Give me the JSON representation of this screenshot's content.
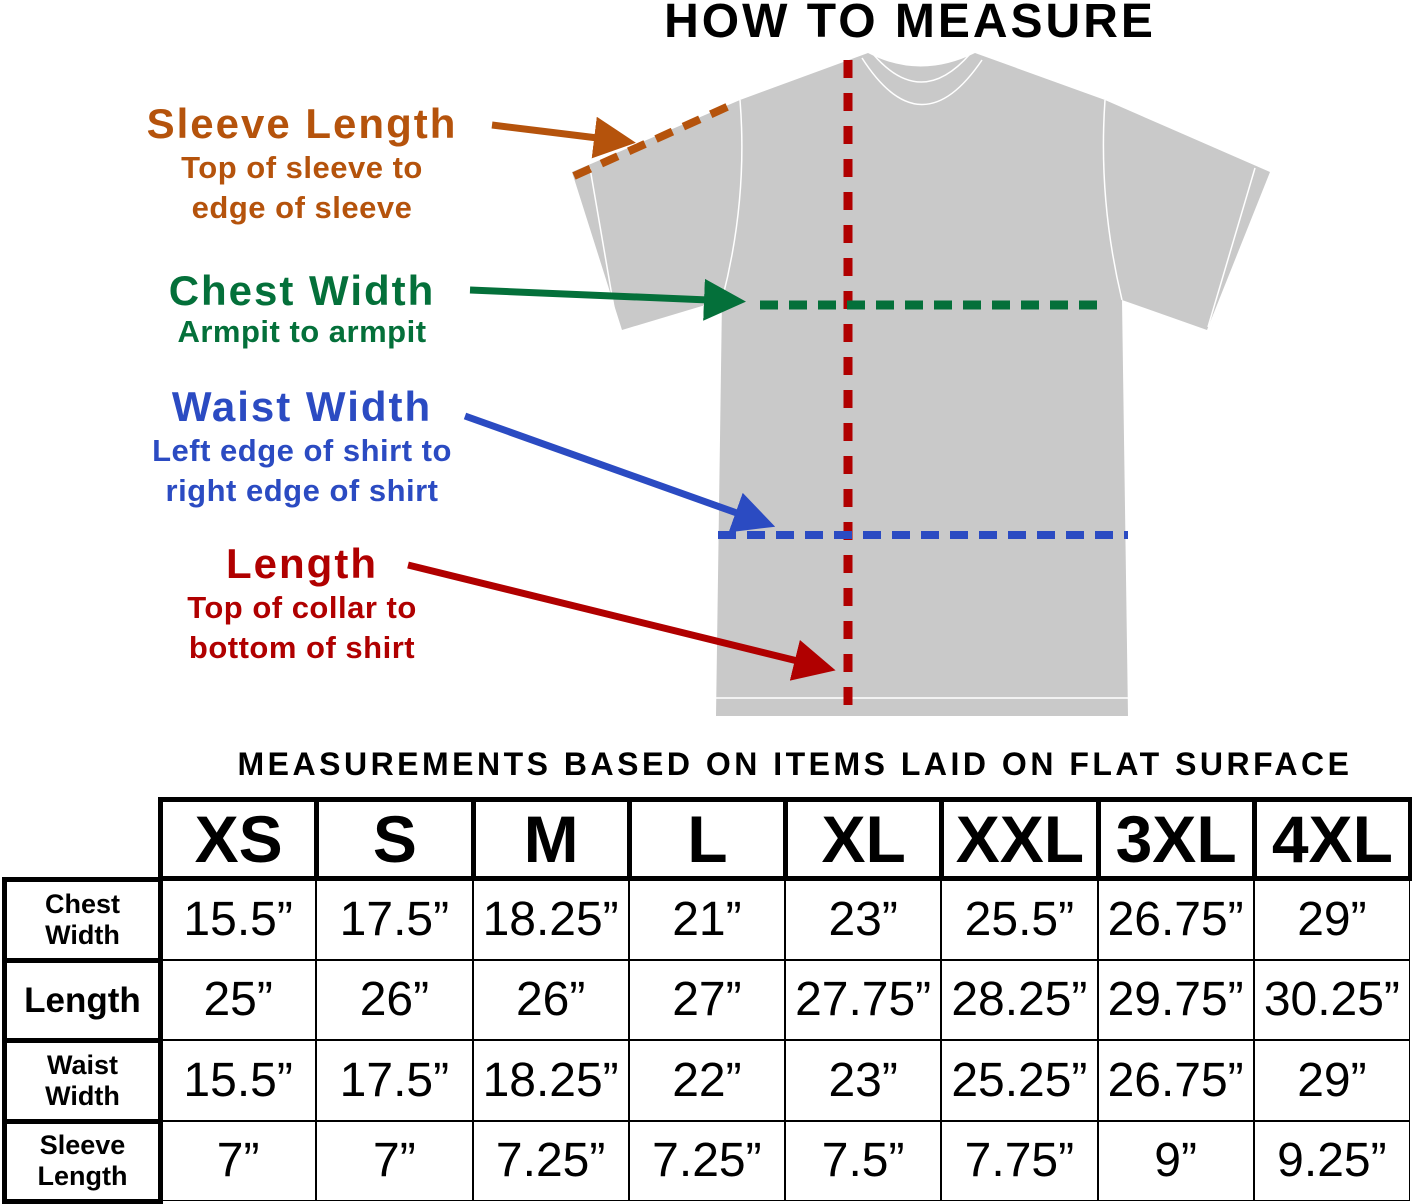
{
  "title": "HOW TO MEASURE",
  "labels": [
    {
      "key": "sleeve",
      "heading": "Sleeve Length",
      "desc1": "Top of sleeve to",
      "desc2": "edge of sleeve",
      "color": "#b5530c"
    },
    {
      "key": "chest",
      "heading": "Chest Width",
      "desc1": "Armpit to armpit",
      "desc2": "",
      "color": "#04703a"
    },
    {
      "key": "waist",
      "heading": "Waist Width",
      "desc1": "Left edge of shirt to",
      "desc2": "right edge of shirt",
      "color": "#2b4bc2"
    },
    {
      "key": "length",
      "heading": "Length",
      "desc1": "Top of collar to",
      "desc2": "bottom of shirt",
      "color": "#b00000"
    }
  ],
  "shirt_color": "#c9c9c9",
  "subtitle": "MEASUREMENTS BASED ON ITEMS LAID ON FLAT SURFACE",
  "table": {
    "sizes": [
      "XS",
      "S",
      "M",
      "L",
      "XL",
      "XXL",
      "3XL",
      "4XL"
    ],
    "rows": [
      {
        "label1": "Chest",
        "label2": "Width",
        "values": [
          "15.5”",
          "17.5”",
          "18.25”",
          "21”",
          "23”",
          "25.5”",
          "26.75”",
          "29”"
        ]
      },
      {
        "label1": "Length",
        "label2": "",
        "values": [
          "25”",
          "26”",
          "26”",
          "27”",
          "27.75”",
          "28.25”",
          "29.75”",
          "30.25”"
        ]
      },
      {
        "label1": "Waist",
        "label2": "Width",
        "values": [
          "15.5”",
          "17.5”",
          "18.25”",
          "22”",
          "23”",
          "25.25”",
          "26.75”",
          "29”"
        ]
      },
      {
        "label1": "Sleeve",
        "label2": "Length",
        "values": [
          "7”",
          "7”",
          "7.25”",
          "7.25”",
          "7.5”",
          "7.75”",
          "9”",
          "9.25”"
        ]
      }
    ]
  }
}
